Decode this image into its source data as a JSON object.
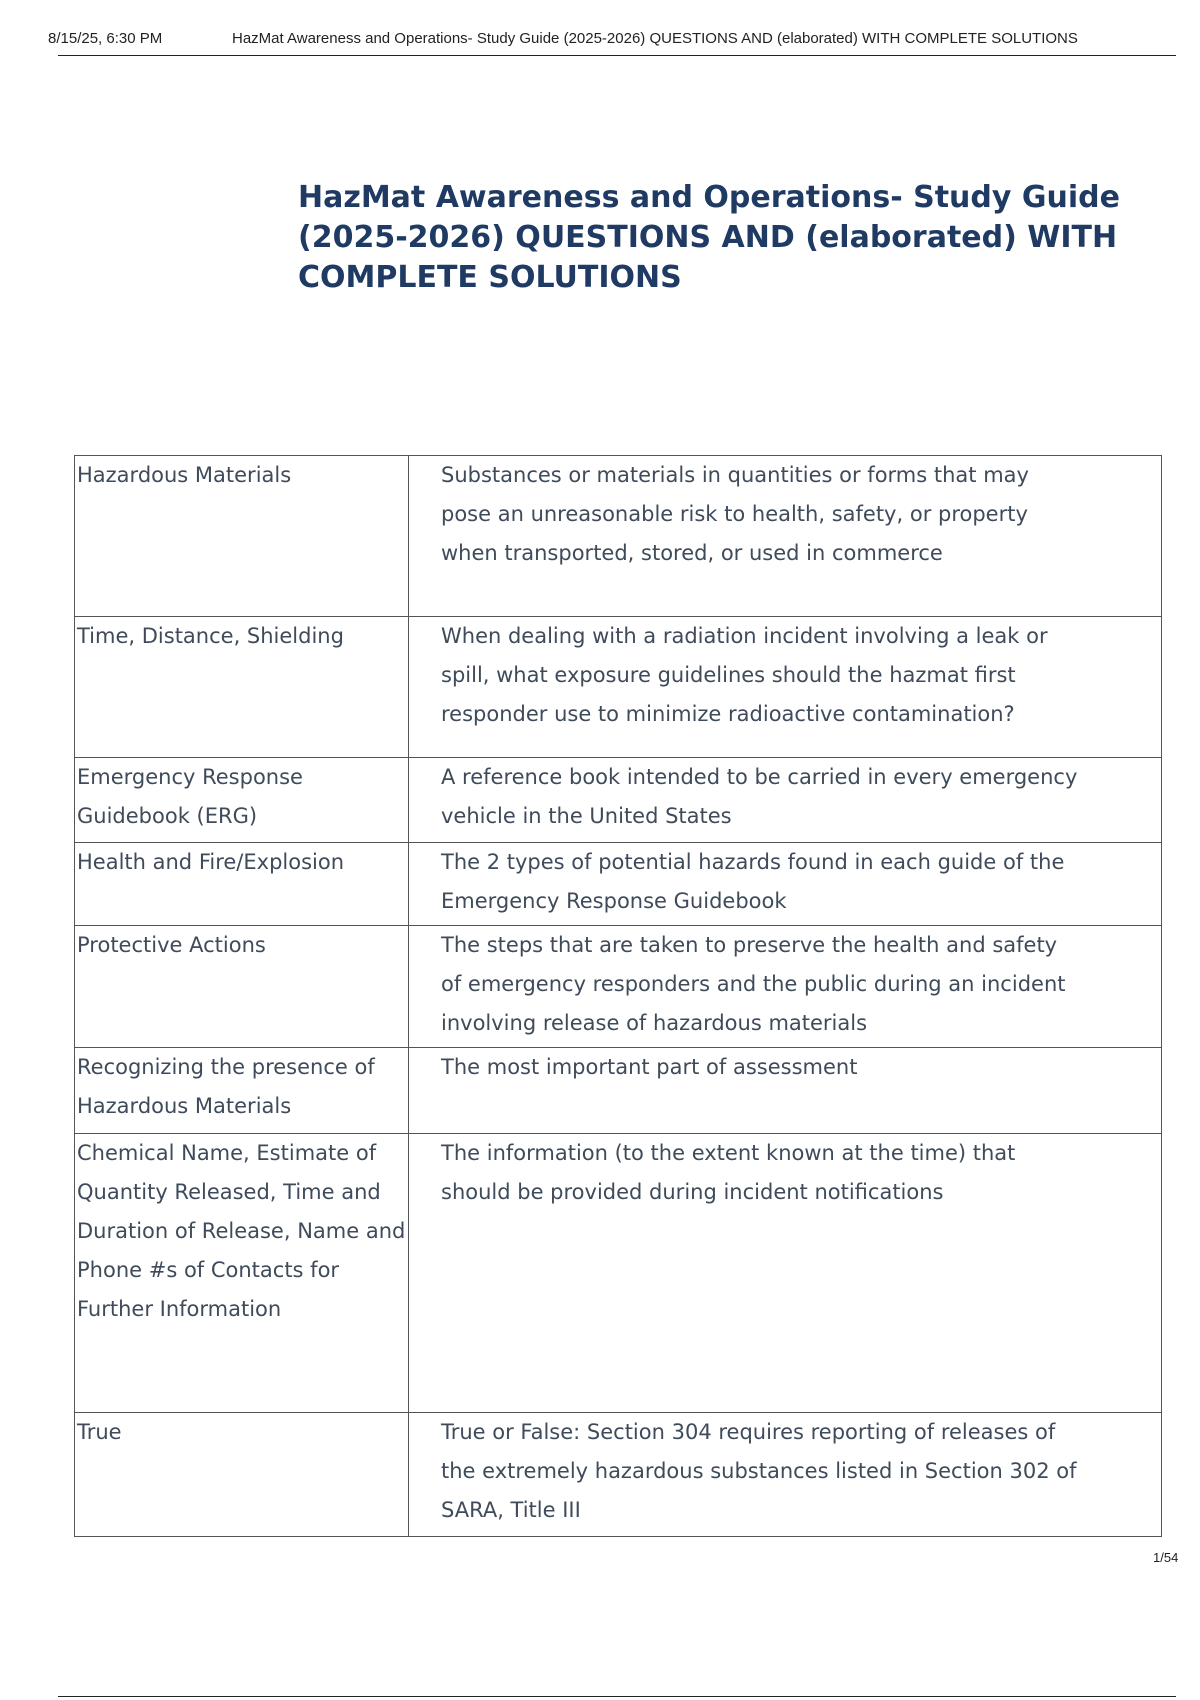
{
  "header": {
    "datetime": "8/15/25, 6:30 PM",
    "doc_title": "HazMat Awareness and Operations- Study Guide (2025-2026) QUESTIONS AND (elaborated) WITH COMPLETE SOLUTIONS"
  },
  "title": "HazMat Awareness and Operations- Study Guide (2025-2026) QUESTIONS AND (elaborated) WITH COMPLETE SOLUTIONS",
  "table": {
    "rows": [
      [
        "Hazardous Materials",
        "Substances or materials in quantities or forms that may pose an unreasonable risk to health, safety, or property when transported, stored, or used in commerce"
      ],
      [
        "Time, Distance, Shielding",
        "When dealing with a radiation incident involving a leak or spill, what exposure guidelines should the hazmat first responder use to minimize radioactive contamination?"
      ],
      [
        "Emergency Response Guidebook (ERG)",
        "A reference book intended to be carried in every emergency vehicle in the United States"
      ],
      [
        "Health and Fire/Explosion",
        "The 2 types of potential hazards found in each guide of the Emergency Response Guidebook"
      ],
      [
        "Protective Actions",
        "The steps that are taken to preserve the health and safety of emergency responders and the public during an incident involving release of hazardous materials"
      ],
      [
        "Recognizing the presence of Hazardous Materials",
        "The most important part of assessment"
      ],
      [
        "Chemical Name, Estimate of Quantity Released, Time and Duration of Release, Name and Phone #s of Contacts for Further Information",
        "The information (to the extent known at the time) that should be provided during incident notifications"
      ],
      [
        "True",
        "True or False: Section 304 requires reporting of releases of the extremely hazardous substances listed in Section 302 of SARA, Title III"
      ]
    ]
  },
  "footer": {
    "page": "1/54"
  }
}
